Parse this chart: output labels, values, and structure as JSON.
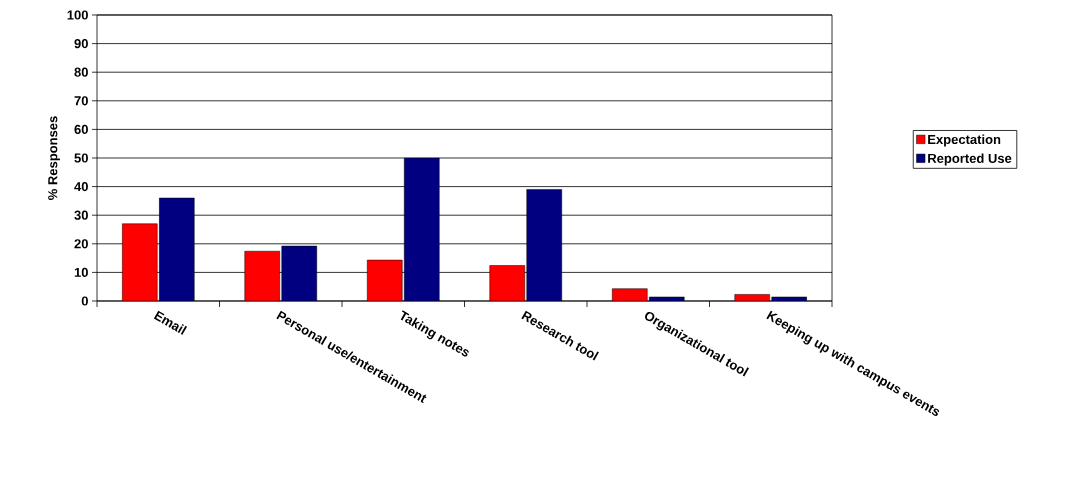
{
  "chart_data": {
    "type": "bar",
    "ylabel": "% Responses",
    "categories": [
      "Email",
      "Personal use/entertainment",
      "Taking notes",
      "Research tool",
      "Organizational tool",
      "Keeping up with campus events"
    ],
    "series": [
      {
        "name": "Expectation",
        "color": "#ff0000",
        "values": [
          27,
          17.4,
          14.3,
          12.4,
          4.3,
          2.3
        ]
      },
      {
        "name": "Reported Use",
        "color": "#000080",
        "values": [
          36,
          19.2,
          50,
          39,
          1.4,
          1.4
        ]
      }
    ],
    "ylim": [
      0,
      100
    ],
    "yticks": [
      0,
      10,
      20,
      30,
      40,
      50,
      60,
      70,
      80,
      90,
      100
    ],
    "grid": "y",
    "legend": "right"
  }
}
